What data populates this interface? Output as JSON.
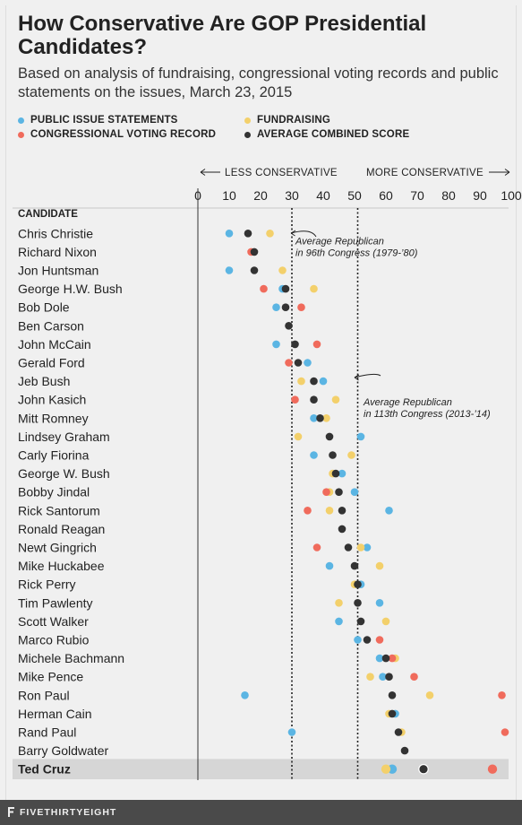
{
  "title": "How Conservative Are GOP Presidential Candidates?",
  "subtitle": "Based on analysis of fundraising, congressional voting records and public statements on the issues, March 23, 2015",
  "legend": [
    {
      "label": "PUBLIC ISSUE STATEMENTS",
      "color": "#5bb5e3"
    },
    {
      "label": "FUNDRAISING",
      "color": "#f3d06b"
    },
    {
      "label": "CONGRESSIONAL VOTING RECORD",
      "color": "#f06b5c"
    },
    {
      "label": "AVERAGE COMBINED SCORE",
      "color": "#333333"
    }
  ],
  "axis_direction": {
    "left": "LESS CONSERVATIVE",
    "right": "MORE CONSERVATIVE"
  },
  "column_header": "CANDIDATE",
  "footer": "FIVETHIRTYEIGHT",
  "chart_data": {
    "type": "scatter",
    "xlim": [
      0,
      100
    ],
    "xticks": [
      0,
      10,
      20,
      30,
      40,
      50,
      60,
      70,
      80,
      90,
      100
    ],
    "reference_lines": [
      {
        "x": 30,
        "label": "Average Republican in 96th Congress (1979-’80)"
      },
      {
        "x": 51,
        "label": "Average Republican in 113th Congress (2013-’14)"
      }
    ],
    "highlight": "Ted Cruz",
    "candidates": [
      {
        "name": "Chris Christie",
        "issues": 10,
        "fundraising": 23,
        "voting": null,
        "average": 16
      },
      {
        "name": "Richard Nixon",
        "issues": null,
        "fundraising": null,
        "voting": 17,
        "average": 18
      },
      {
        "name": "Jon Huntsman",
        "issues": 10,
        "fundraising": 27,
        "voting": null,
        "average": 18
      },
      {
        "name": "George H.W. Bush",
        "issues": 27,
        "fundraising": 37,
        "voting": 21,
        "average": 28
      },
      {
        "name": "Bob Dole",
        "issues": 25,
        "fundraising": null,
        "voting": 33,
        "average": 28
      },
      {
        "name": "Ben Carson",
        "issues": null,
        "fundraising": null,
        "voting": null,
        "average": 29
      },
      {
        "name": "John McCain",
        "issues": 25,
        "fundraising": null,
        "voting": 38,
        "average": 31
      },
      {
        "name": "Gerald Ford",
        "issues": 35,
        "fundraising": null,
        "voting": 29,
        "average": 32
      },
      {
        "name": "Jeb Bush",
        "issues": 40,
        "fundraising": 33,
        "voting": null,
        "average": 37
      },
      {
        "name": "John Kasich",
        "issues": null,
        "fundraising": 44,
        "voting": 31,
        "average": 37
      },
      {
        "name": "Mitt Romney",
        "issues": 37,
        "fundraising": 41,
        "voting": null,
        "average": 39
      },
      {
        "name": "Lindsey Graham",
        "issues": 52,
        "fundraising": 32,
        "voting": null,
        "average": 42
      },
      {
        "name": "Carly Fiorina",
        "issues": 37,
        "fundraising": 49,
        "voting": null,
        "average": 43
      },
      {
        "name": "George W. Bush",
        "issues": 46,
        "fundraising": 43,
        "voting": null,
        "average": 44
      },
      {
        "name": "Bobby Jindal",
        "issues": 50,
        "fundraising": 42,
        "voting": 41,
        "average": 45
      },
      {
        "name": "Rick Santorum",
        "issues": 61,
        "fundraising": 42,
        "voting": 35,
        "average": 46
      },
      {
        "name": "Ronald Reagan",
        "issues": null,
        "fundraising": null,
        "voting": null,
        "average": 46
      },
      {
        "name": "Newt Gingrich",
        "issues": 54,
        "fundraising": 52,
        "voting": 38,
        "average": 48
      },
      {
        "name": "Mike Huckabee",
        "issues": 42,
        "fundraising": 58,
        "voting": null,
        "average": 50
      },
      {
        "name": "Rick Perry",
        "issues": 52,
        "fundraising": 50,
        "voting": null,
        "average": 51
      },
      {
        "name": "Tim Pawlenty",
        "issues": 58,
        "fundraising": 45,
        "voting": null,
        "average": 51
      },
      {
        "name": "Scott Walker",
        "issues": 45,
        "fundraising": 60,
        "voting": null,
        "average": 52
      },
      {
        "name": "Marco Rubio",
        "issues": 51,
        "fundraising": null,
        "voting": 58,
        "average": 54
      },
      {
        "name": "Michele Bachmann",
        "issues": 58,
        "fundraising": 63,
        "voting": 62,
        "average": 60
      },
      {
        "name": "Mike Pence",
        "issues": 59,
        "fundraising": 55,
        "voting": 69,
        "average": 61
      },
      {
        "name": "Ron Paul",
        "issues": 15,
        "fundraising": 74,
        "voting": 97,
        "average": 62
      },
      {
        "name": "Herman Cain",
        "issues": 63,
        "fundraising": 61,
        "voting": null,
        "average": 62
      },
      {
        "name": "Rand Paul",
        "issues": 30,
        "fundraising": 65,
        "voting": 98,
        "average": 64
      },
      {
        "name": "Barry Goldwater",
        "issues": null,
        "fundraising": null,
        "voting": null,
        "average": 66
      },
      {
        "name": "Ted Cruz",
        "issues": 62,
        "fundraising": 60,
        "voting": 94,
        "average": 72
      }
    ]
  }
}
